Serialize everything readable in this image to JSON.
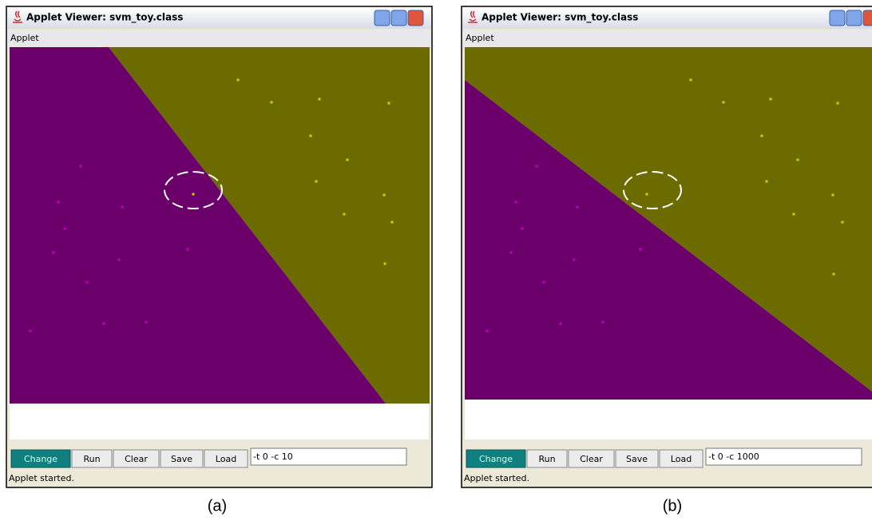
{
  "windows": [
    {
      "title": "Applet Viewer: svm_toy.class",
      "menu": "Applet",
      "buttons": [
        "Change",
        "Run",
        "Clear",
        "Save",
        "Load"
      ],
      "field": "-t 0 -c 10",
      "status": "Applet started.",
      "caption": "(a)"
    },
    {
      "title": "Applet Viewer: svm_toy.class",
      "menu": "Applet",
      "buttons": [
        "Change",
        "Run",
        "Clear",
        "Save",
        "Load"
      ],
      "field": "-t 0 -c 1000",
      "status": "Applet started.",
      "caption": "(b)"
    }
  ]
}
